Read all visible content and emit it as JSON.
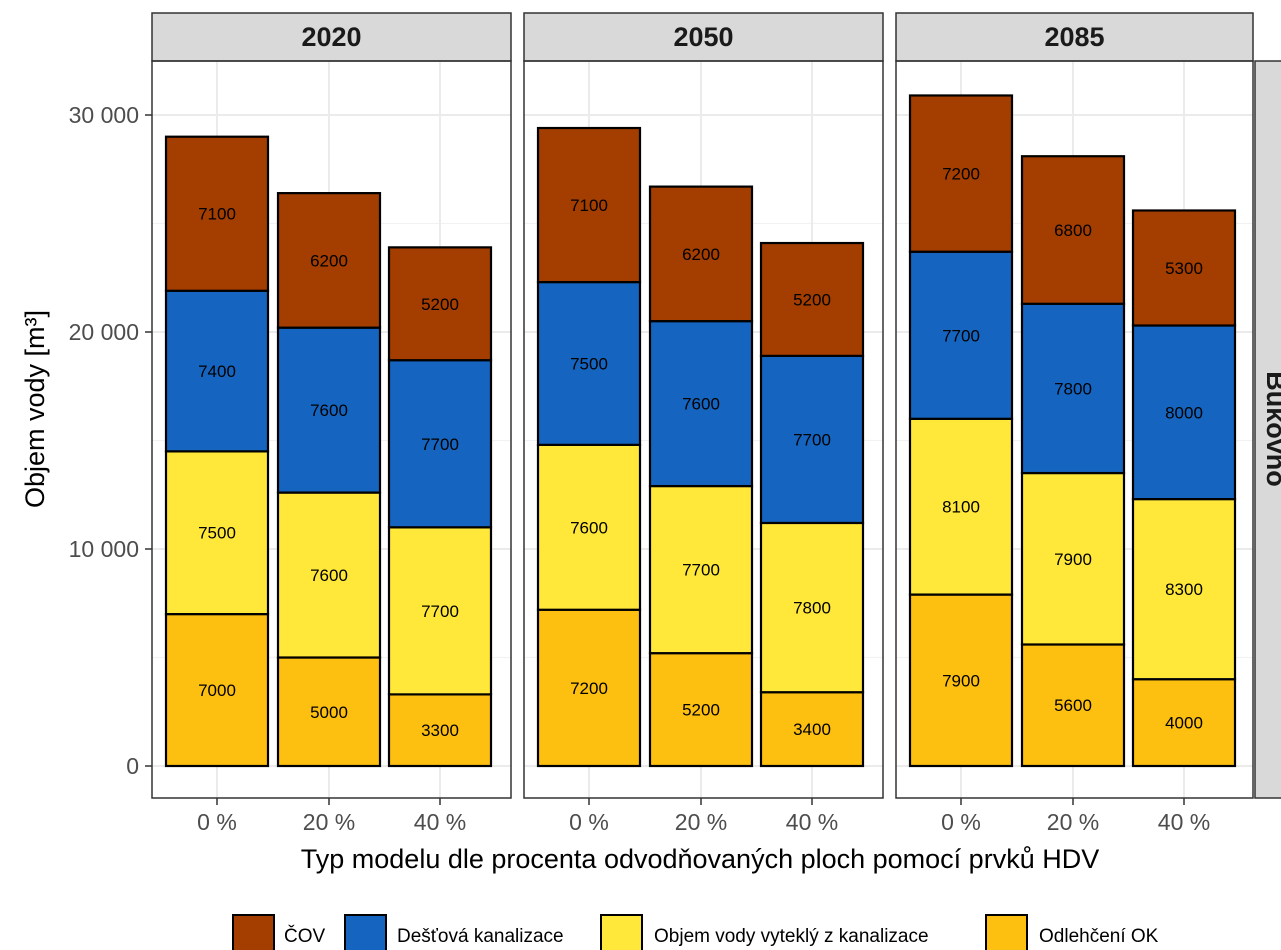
{
  "chart_data": {
    "type": "bar",
    "stacked": true,
    "facets": [
      "2020",
      "2050",
      "2085"
    ],
    "facet_row_label": "Bukovno",
    "categories": [
      "0 %",
      "20 %",
      "40 %"
    ],
    "xlabel": "Typ modelu dle procenta odvodňovaných ploch pomocí prvků HDV",
    "ylabel": "Objem vody [m³]",
    "ylim": [
      0,
      32000
    ],
    "yticks": [
      0,
      10000,
      20000,
      30000
    ],
    "ytick_labels": [
      "0",
      "10 000",
      "20 000",
      "30 000"
    ],
    "grid": true,
    "legend_position": "bottom",
    "series": [
      {
        "name": "Odlehčení OK",
        "color": "#FDC010",
        "values": [
          [
            7000,
            5000,
            3300
          ],
          [
            7200,
            5200,
            3400
          ],
          [
            7900,
            5600,
            4000
          ]
        ]
      },
      {
        "name": "Objem vody vyteklý z kanalizace",
        "color": "#FFE83A",
        "values": [
          [
            7500,
            7600,
            7700
          ],
          [
            7600,
            7700,
            7800
          ],
          [
            8100,
            7900,
            8300
          ]
        ]
      },
      {
        "name": "Dešťová kanalizace",
        "color": "#1565C0",
        "values": [
          [
            7400,
            7600,
            7700
          ],
          [
            7500,
            7600,
            7700
          ],
          [
            7700,
            7800,
            8000
          ]
        ]
      },
      {
        "name": "ČOV",
        "color": "#A33D00",
        "values": [
          [
            7100,
            6200,
            5200
          ],
          [
            7100,
            6200,
            5200
          ],
          [
            7200,
            6800,
            5300
          ]
        ]
      }
    ],
    "legend_order": [
      "ČOV",
      "Dešťová kanalizace",
      "Objem vody vyteklý z kanalizace",
      "Odlehčení OK"
    ]
  }
}
